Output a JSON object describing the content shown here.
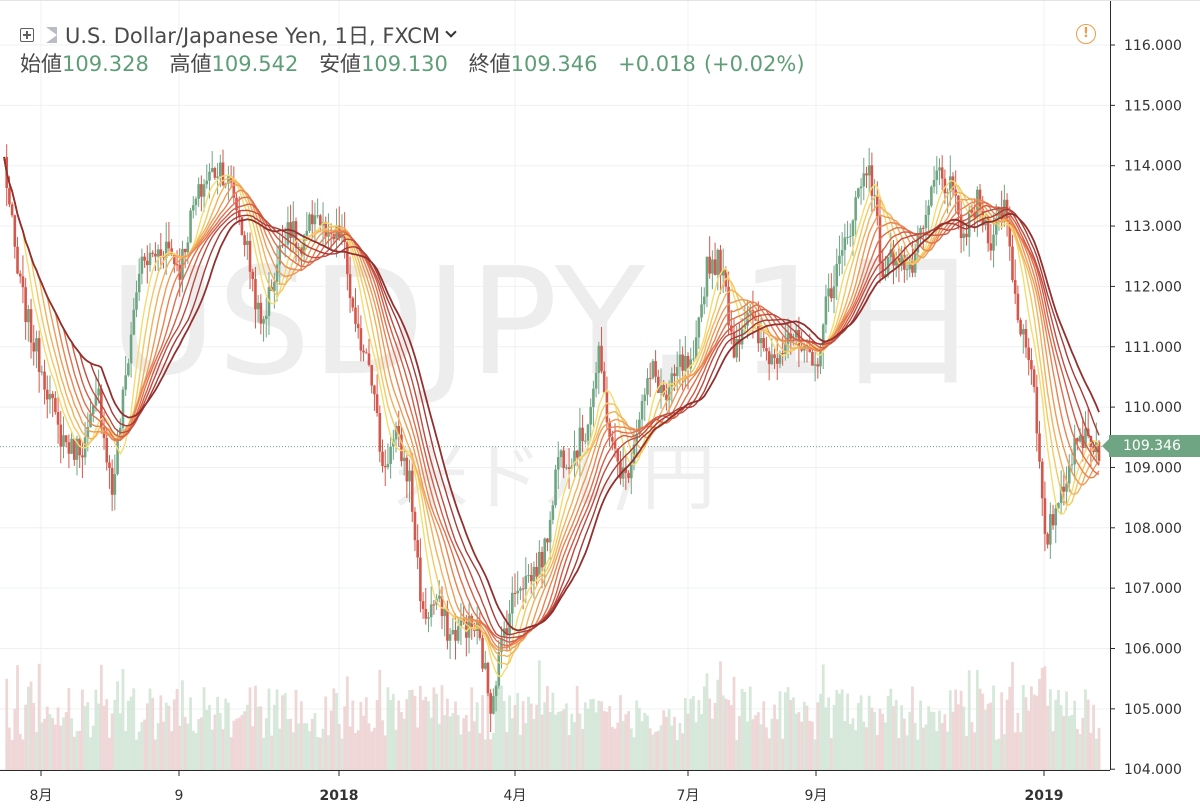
{
  "header": {
    "symbol_title": "U.S. Dollar/Japanese Yen, 1日, FXCM",
    "ohlc": [
      {
        "label": "始値",
        "value": "109.328"
      },
      {
        "label": "高値",
        "value": "109.542"
      },
      {
        "label": "安値",
        "value": "109.130"
      },
      {
        "label": "終値",
        "value": "109.346"
      }
    ],
    "change": "+0.018",
    "change_pct": "(+0.02%)"
  },
  "watermark": {
    "symbol": "USDJPY, 1日",
    "name": "米ドル/円"
  },
  "last_price_label": "109.346",
  "colors": {
    "up": "#6fa583",
    "down": "#d5574c",
    "last_price": "#6fa583",
    "alert": "#ef9c45"
  },
  "icons": {
    "expand": "expand-icon",
    "flag": "flag-icon",
    "chevron": "chevron-down-icon",
    "alert": "alert-icon"
  },
  "chart_data": {
    "type": "candlestick",
    "x_ticks": [
      "8月",
      "9",
      "2018",
      "4月",
      "7月",
      "9月",
      "2019"
    ],
    "y_ticks": [
      "116.000",
      "115.000",
      "114.000",
      "113.000",
      "112.000",
      "111.000",
      "110.000",
      "109.000",
      "108.000",
      "107.000",
      "106.000",
      "105.000",
      "104.000"
    ],
    "ylim": [
      104,
      116.5
    ],
    "last_price": 109.346,
    "ribbon": {
      "type": "moving-average ribbon",
      "colors": [
        "#f5dc6e",
        "#f4c862",
        "#f2b15a",
        "#ef9a55",
        "#ea8350",
        "#e16f4c",
        "#d35c46",
        "#c04b3f",
        "#a93b36",
        "#93302e"
      ]
    },
    "price_path": [
      [
        "2017-07-13",
        114.1
      ],
      [
        "2017-07-20",
        112.2
      ],
      [
        "2017-07-27",
        111.2
      ],
      [
        "2017-08-03",
        110.5
      ],
      [
        "2017-08-10",
        109.6
      ],
      [
        "2017-08-17",
        109.3
      ],
      [
        "2017-08-24",
        109.4
      ],
      [
        "2017-08-31",
        110.2
      ],
      [
        "2017-09-07",
        108.6
      ],
      [
        "2017-09-14",
        110.5
      ],
      [
        "2017-09-21",
        112.3
      ],
      [
        "2017-09-28",
        112.5
      ],
      [
        "2017-10-05",
        112.7
      ],
      [
        "2017-10-12",
        112.3
      ],
      [
        "2017-10-19",
        113.3
      ],
      [
        "2017-10-26",
        113.8
      ],
      [
        "2017-11-02",
        114.0
      ],
      [
        "2017-11-09",
        113.5
      ],
      [
        "2017-11-16",
        112.6
      ],
      [
        "2017-11-23",
        111.3
      ],
      [
        "2017-11-30",
        112.2
      ],
      [
        "2017-12-07",
        113.1
      ],
      [
        "2017-12-14",
        112.5
      ],
      [
        "2017-12-21",
        113.3
      ],
      [
        "2017-12-28",
        112.7
      ],
      [
        "2018-01-04",
        112.9
      ],
      [
        "2018-01-11",
        111.2
      ],
      [
        "2018-01-18",
        110.9
      ],
      [
        "2018-01-25",
        109.0
      ],
      [
        "2018-02-01",
        109.5
      ],
      [
        "2018-02-08",
        108.8
      ],
      [
        "2018-02-15",
        106.5
      ],
      [
        "2018-02-22",
        106.8
      ],
      [
        "2018-03-01",
        106.2
      ],
      [
        "2018-03-08",
        106.4
      ],
      [
        "2018-03-15",
        106.3
      ],
      [
        "2018-03-22",
        105.1
      ],
      [
        "2018-03-29",
        106.3
      ],
      [
        "2018-04-05",
        107.1
      ],
      [
        "2018-04-12",
        107.2
      ],
      [
        "2018-04-19",
        107.6
      ],
      [
        "2018-04-26",
        109.2
      ],
      [
        "2018-05-03",
        109.2
      ],
      [
        "2018-05-10",
        109.6
      ],
      [
        "2018-05-17",
        110.8
      ],
      [
        "2018-05-24",
        109.3
      ],
      [
        "2018-05-31",
        108.8
      ],
      [
        "2018-06-07",
        109.9
      ],
      [
        "2018-06-14",
        110.6
      ],
      [
        "2018-06-21",
        110.1
      ],
      [
        "2018-06-28",
        110.7
      ],
      [
        "2018-07-05",
        110.6
      ],
      [
        "2018-07-12",
        112.4
      ],
      [
        "2018-07-19",
        112.4
      ],
      [
        "2018-07-26",
        111.0
      ],
      [
        "2018-08-02",
        111.6
      ],
      [
        "2018-08-09",
        111.0
      ],
      [
        "2018-08-16",
        110.8
      ],
      [
        "2018-08-23",
        111.3
      ],
      [
        "2018-08-30",
        110.9
      ],
      [
        "2018-09-06",
        110.6
      ],
      [
        "2018-09-13",
        111.9
      ],
      [
        "2018-09-20",
        112.5
      ],
      [
        "2018-09-27",
        113.4
      ],
      [
        "2018-10-04",
        114.1
      ],
      [
        "2018-10-11",
        112.2
      ],
      [
        "2018-10-18",
        112.6
      ],
      [
        "2018-10-25",
        112.2
      ],
      [
        "2018-11-01",
        112.9
      ],
      [
        "2018-11-08",
        113.9
      ],
      [
        "2018-11-15",
        113.6
      ],
      [
        "2018-11-22",
        112.8
      ],
      [
        "2018-11-29",
        113.4
      ],
      [
        "2018-12-06",
        112.8
      ],
      [
        "2018-12-13",
        113.4
      ],
      [
        "2018-12-20",
        111.5
      ],
      [
        "2018-12-27",
        110.8
      ],
      [
        "2019-01-03",
        107.7
      ],
      [
        "2019-01-10",
        108.5
      ],
      [
        "2019-01-17",
        109.2
      ],
      [
        "2019-01-24",
        109.6
      ],
      [
        "2019-01-31",
        109.3
      ]
    ],
    "volume": {
      "shown": true,
      "colors": [
        "#e8c9c9",
        "#cfe4d4"
      ]
    }
  }
}
